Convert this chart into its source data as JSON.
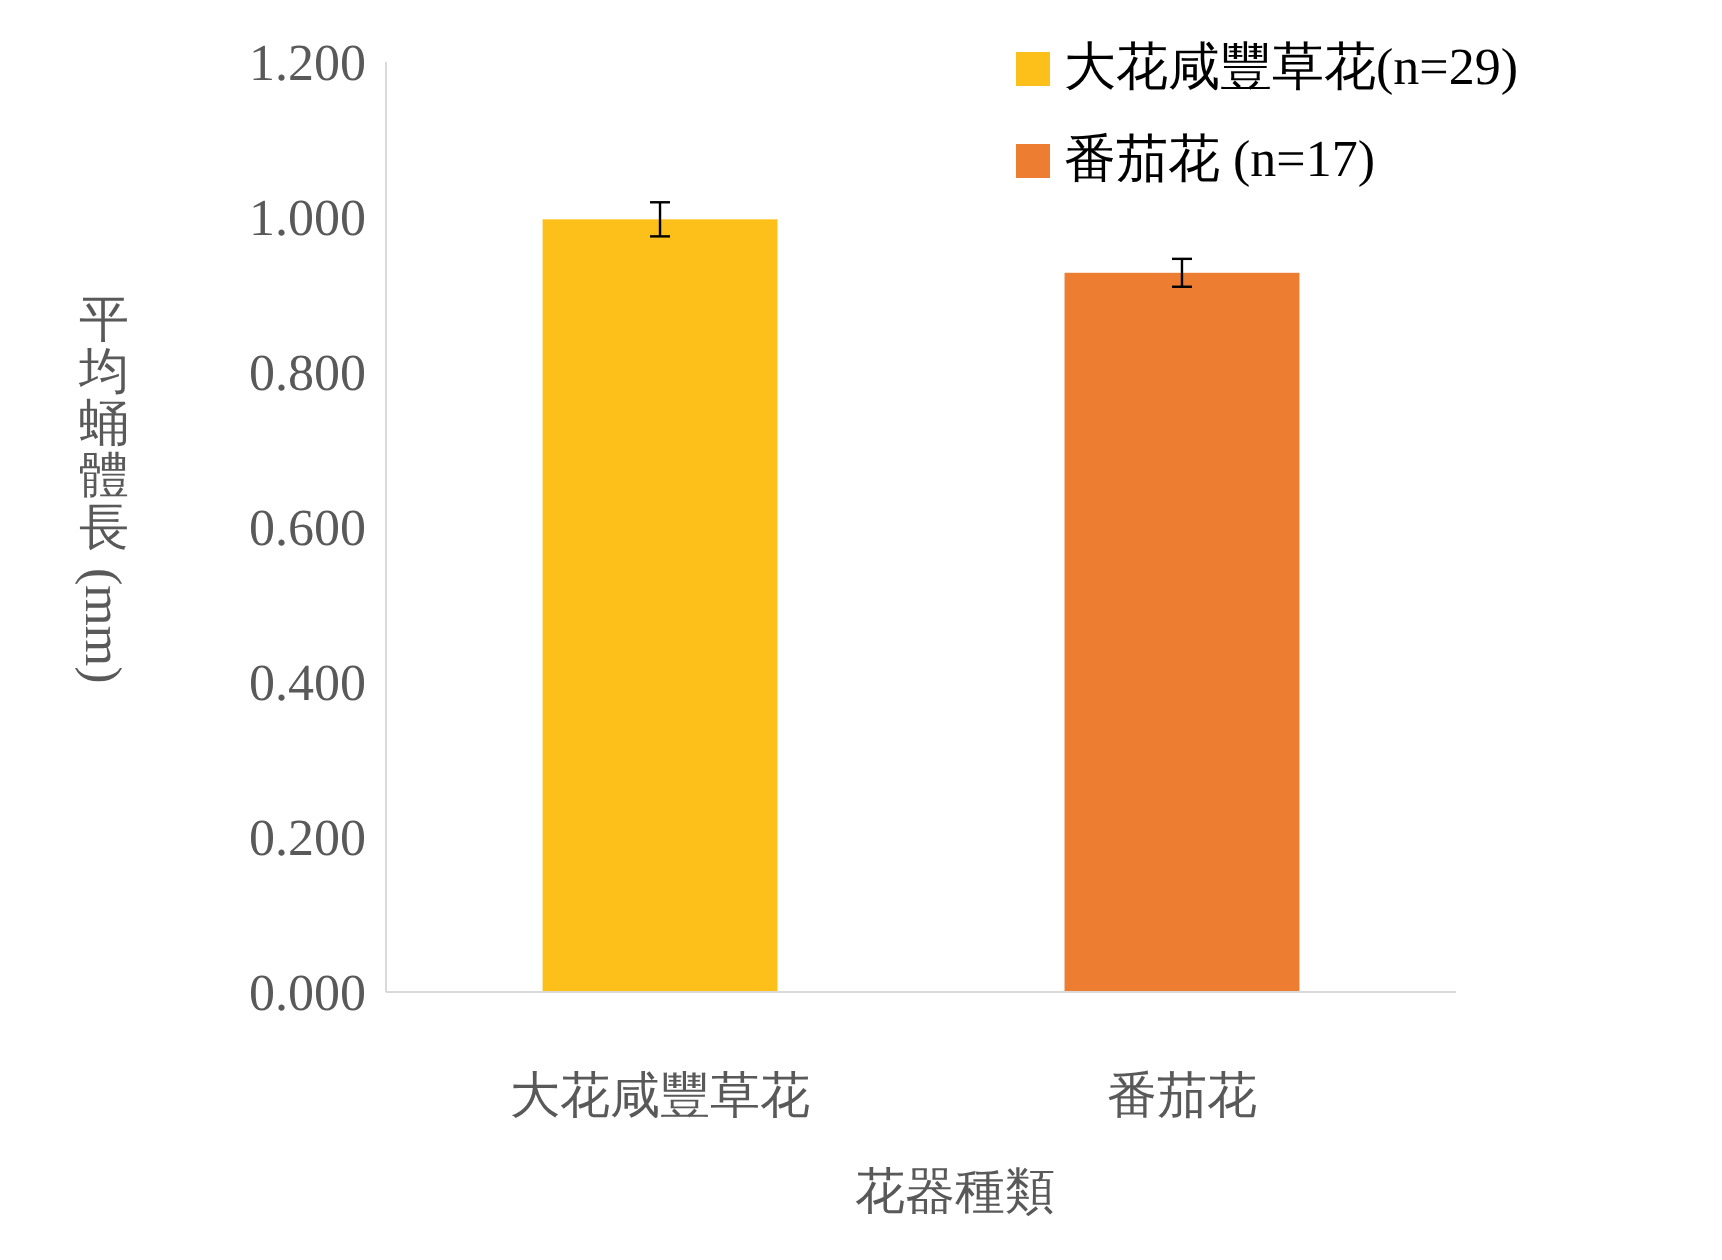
{
  "chart_data": {
    "type": "bar",
    "xlabel": "花器種類",
    "ylabel": "平均蛹體長(mm)",
    "categories": [
      "大花咸豐草花",
      "番茄花"
    ],
    "series": [
      {
        "name": "大花咸豐草花(n=29)",
        "color": "#fdc01a",
        "values": [
          0.997,
          null
        ],
        "errors": [
          0.022,
          null
        ]
      },
      {
        "name": "番茄花 (n=17)",
        "color": "#ed7d31",
        "values": [
          null,
          0.928
        ],
        "errors": [
          null,
          0.018
        ]
      }
    ],
    "ylim": [
      0,
      1.2
    ],
    "yticks": [
      {
        "value": 0,
        "label": "0.000"
      },
      {
        "value": 0.2,
        "label": "0.200"
      },
      {
        "value": 0.4,
        "label": "0.400"
      },
      {
        "value": 0.6,
        "label": "0.600"
      },
      {
        "value": 0.8,
        "label": "0.800"
      },
      {
        "value": 1,
        "label": "1.000"
      },
      {
        "value": 1.2,
        "label": "1.200"
      }
    ],
    "grid": false,
    "legend": "top right"
  }
}
